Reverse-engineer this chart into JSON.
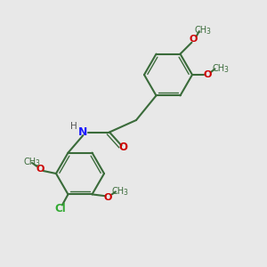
{
  "bg_color": "#e8e8e8",
  "bond_color": "#3a6b3a",
  "atom_colors": {
    "O": "#cc0000",
    "N": "#1a1aff",
    "Cl": "#33aa33",
    "H": "#555555"
  },
  "figsize": [
    3.0,
    3.0
  ],
  "dpi": 100,
  "xlim": [
    0,
    10
  ],
  "ylim": [
    0,
    10
  ]
}
